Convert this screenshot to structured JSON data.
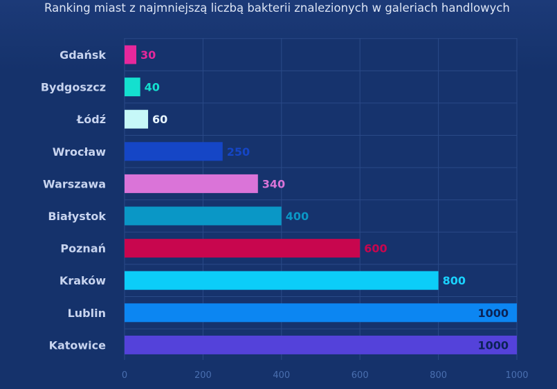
{
  "chart_data": {
    "type": "bar",
    "orientation": "horizontal",
    "title": "Ranking miast z najmniejszą liczbą bakterii znalezionych w galeriach handlowych",
    "categories": [
      "Gdańsk",
      "Bydgoszcz",
      "Łódź",
      "Wrocław",
      "Warszawa",
      "Białystok",
      "Poznań",
      "Kraków",
      "Lublin",
      "Katowice"
    ],
    "values": [
      30,
      40,
      60,
      250,
      340,
      400,
      600,
      800,
      1000,
      1000
    ],
    "value_labels": [
      "30",
      "40",
      "60",
      "250",
      "340",
      "400",
      "600",
      "800",
      "1000",
      "1000"
    ],
    "bar_colors": [
      "#e6289c",
      "#14e0cf",
      "#c6f8f8",
      "#1546c6",
      "#da74d8",
      "#0a97c6",
      "#c8064e",
      "#0ccdf8",
      "#0c86f2",
      "#5442da"
    ],
    "label_colors": [
      "#e6289c",
      "#14e0cf",
      "#e8f6ff",
      "#1546c6",
      "#da74d8",
      "#0a97c6",
      "#c8064e",
      "#1ad2ff",
      "#0b2356",
      "#0b2356"
    ],
    "xlim": [
      0,
      1000
    ],
    "xticks": [
      "0",
      "200",
      "400",
      "600",
      "800",
      "1000"
    ],
    "grid": true,
    "plot_background": "#16336d",
    "grid_color": "#2a4a88"
  }
}
